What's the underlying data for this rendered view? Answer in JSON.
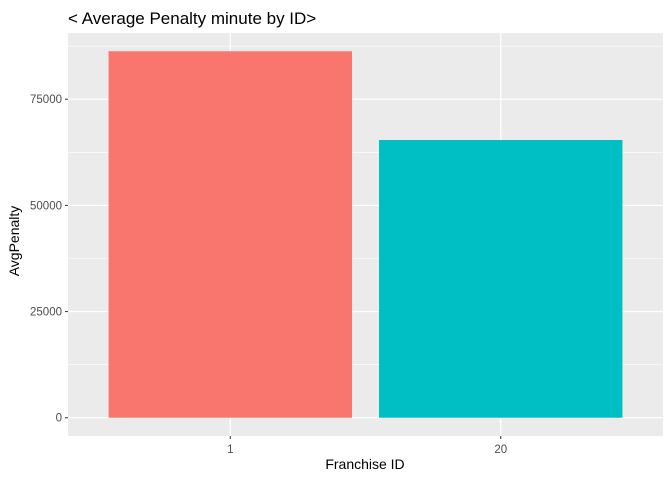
{
  "chart_data": {
    "type": "bar",
    "title": "< Average Penalty minute by ID>",
    "xlabel": "Franchise ID",
    "ylabel": "AvgPenalty",
    "categories": [
      "1",
      "20"
    ],
    "values": [
      86300,
      65400
    ],
    "colors": [
      "#F8766D",
      "#00BFC4"
    ],
    "yticks": [
      0,
      25000,
      50000,
      75000
    ],
    "ytick_labels": [
      "0",
      "25000",
      "50000",
      "75000"
    ],
    "ylim": [
      -4300,
      90600
    ],
    "grid": true,
    "background": "#EBEBEB",
    "legend": "none"
  }
}
